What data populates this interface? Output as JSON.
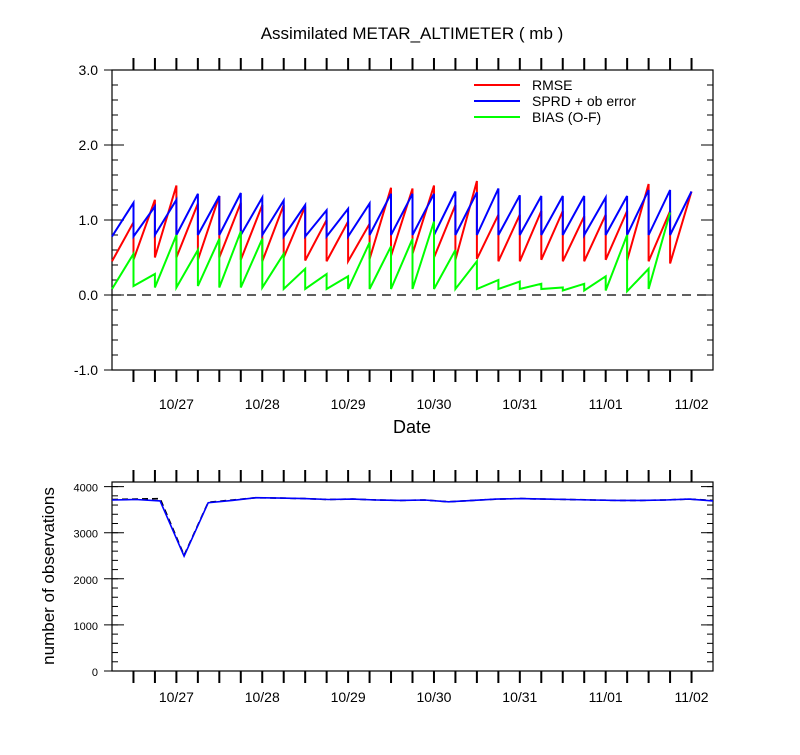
{
  "chart_data": [
    {
      "type": "line",
      "title": "Assimilated METAR_ALTIMETER ( mb )",
      "xlabel": "Date",
      "ylabel": "",
      "ylim": [
        -1.0,
        3.0
      ],
      "yticks": [
        "-1.0",
        "0.0",
        "1.0",
        "2.0",
        "3.0"
      ],
      "xlim": [
        "10/26 06Z",
        "11/02 06Z"
      ],
      "xtick_labels": [
        "10/27",
        "10/28",
        "10/29",
        "10/30",
        "10/31",
        "11/01",
        "11/02"
      ],
      "legend_position": "top-right",
      "zero_line": "dashed",
      "series": [
        {
          "name": "RMSE",
          "color": "#ff0000",
          "segments": [
            [
              0.45,
              0.97
            ],
            [
              0.47,
              1.27
            ],
            [
              0.5,
              1.46
            ],
            [
              0.5,
              1.22
            ],
            [
              0.47,
              1.32
            ],
            [
              0.5,
              1.23
            ],
            [
              0.47,
              1.2
            ],
            [
              0.45,
              1.2
            ],
            [
              0.5,
              1.18
            ],
            [
              0.46,
              1.0
            ],
            [
              0.45,
              0.98
            ],
            [
              0.45,
              0.95
            ],
            [
              0.48,
              1.43
            ],
            [
              0.52,
              1.42
            ],
            [
              0.55,
              1.46
            ],
            [
              0.5,
              1.2
            ],
            [
              0.47,
              1.52
            ],
            [
              0.48,
              1.07
            ],
            [
              0.45,
              1.07
            ],
            [
              0.45,
              1.12
            ],
            [
              0.47,
              1.12
            ],
            [
              0.45,
              1.05
            ],
            [
              0.45,
              1.07
            ],
            [
              0.47,
              1.12
            ],
            [
              0.46,
              1.48
            ],
            [
              0.45,
              1.12
            ],
            [
              0.42,
              1.38
            ]
          ]
        },
        {
          "name": "SPRD + ob error",
          "color": "#0000ff",
          "segments": [
            [
              0.78,
              1.23
            ],
            [
              0.78,
              1.18
            ],
            [
              0.8,
              1.27
            ],
            [
              0.8,
              1.35
            ],
            [
              0.8,
              1.32
            ],
            [
              0.8,
              1.36
            ],
            [
              0.8,
              1.3
            ],
            [
              0.8,
              1.26
            ],
            [
              0.78,
              1.2
            ],
            [
              0.78,
              1.13
            ],
            [
              0.78,
              1.15
            ],
            [
              0.78,
              1.22
            ],
            [
              0.8,
              1.35
            ],
            [
              0.8,
              1.35
            ],
            [
              0.8,
              1.35
            ],
            [
              0.8,
              1.38
            ],
            [
              0.8,
              1.37
            ],
            [
              0.8,
              1.42
            ],
            [
              0.8,
              1.33
            ],
            [
              0.8,
              1.32
            ],
            [
              0.8,
              1.32
            ],
            [
              0.8,
              1.32
            ],
            [
              0.8,
              1.3
            ],
            [
              0.8,
              1.32
            ],
            [
              0.8,
              1.4
            ],
            [
              0.8,
              1.4
            ],
            [
              0.8,
              1.38
            ]
          ]
        },
        {
          "name": "BIAS (O-F)",
          "color": "#00ff00",
          "segments": [
            [
              0.08,
              0.55
            ],
            [
              0.12,
              0.28
            ],
            [
              0.1,
              0.8
            ],
            [
              0.1,
              0.6
            ],
            [
              0.12,
              0.75
            ],
            [
              0.1,
              0.85
            ],
            [
              0.1,
              0.75
            ],
            [
              0.1,
              0.55
            ],
            [
              0.08,
              0.35
            ],
            [
              0.08,
              0.28
            ],
            [
              0.08,
              0.25
            ],
            [
              0.08,
              0.7
            ],
            [
              0.08,
              0.65
            ],
            [
              0.08,
              0.75
            ],
            [
              0.08,
              0.98
            ],
            [
              0.08,
              0.6
            ],
            [
              0.08,
              0.45
            ],
            [
              0.08,
              0.2
            ],
            [
              0.08,
              0.18
            ],
            [
              0.08,
              0.15
            ],
            [
              0.08,
              0.1
            ],
            [
              0.06,
              0.15
            ],
            [
              0.06,
              0.25
            ],
            [
              0.06,
              0.8
            ],
            [
              0.05,
              0.35
            ],
            [
              0.08,
              1.1
            ]
          ]
        }
      ]
    },
    {
      "type": "line",
      "title": "",
      "xlabel": "",
      "ylabel": "number of observations",
      "ylim": [
        0,
        4100
      ],
      "yticks": [
        "0",
        "1000",
        "2000",
        "3000",
        "4000"
      ],
      "xlim": [
        "10/26 06Z",
        "11/02 06Z"
      ],
      "xtick_labels": [
        "10/27",
        "10/28",
        "10/29",
        "10/30",
        "10/31",
        "11/01",
        "11/02"
      ],
      "series": [
        {
          "name": "",
          "color": "#000000",
          "style": "dashed",
          "values": [
            3720,
            3730,
            3740,
            2510,
            3660,
            3710,
            3760,
            3750,
            3740,
            3720,
            3730,
            3710,
            3700,
            3710,
            3670,
            3700,
            3730,
            3740,
            3730,
            3720,
            3710,
            3700,
            3700,
            3710,
            3730,
            3700
          ]
        },
        {
          "name": "",
          "color": "#0000ff",
          "style": "solid",
          "values": [
            3710,
            3720,
            3690,
            2490,
            3650,
            3700,
            3760,
            3750,
            3740,
            3720,
            3730,
            3710,
            3700,
            3710,
            3670,
            3700,
            3730,
            3740,
            3730,
            3720,
            3710,
            3700,
            3700,
            3710,
            3730,
            3690
          ]
        }
      ]
    }
  ]
}
